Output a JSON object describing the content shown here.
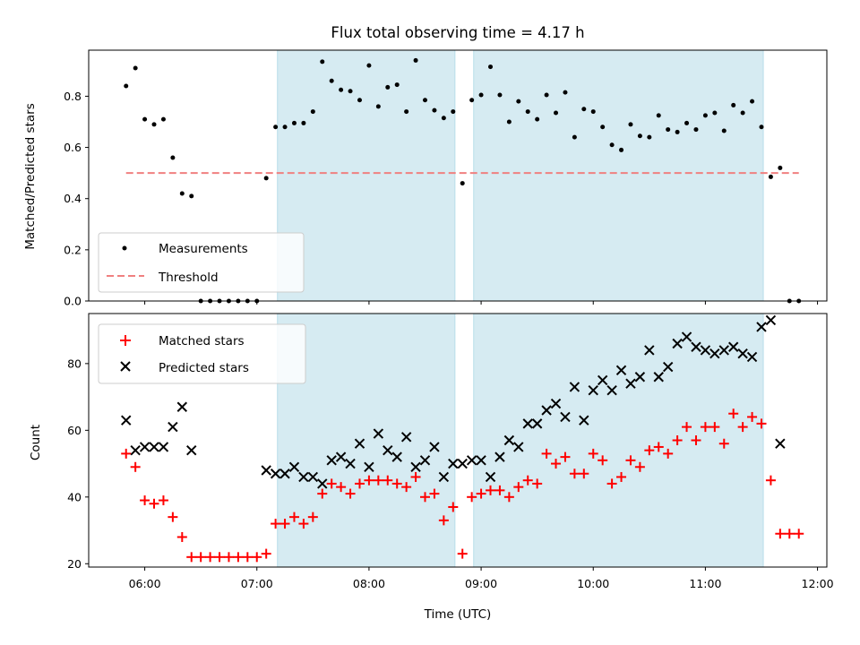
{
  "chart_data": [
    {
      "type": "scatter",
      "panel": "top",
      "title": "Flux total observing time = 4.17 h",
      "xlabel": "",
      "ylabel": "Matched/Predicted stars",
      "xlim": [
        "05:30",
        "12:05"
      ],
      "ylim": [
        0,
        0.98
      ],
      "x_ticks": [
        "06:00",
        "07:00",
        "08:00",
        "09:00",
        "10:00",
        "11:00",
        "12:00"
      ],
      "y_ticks": [
        "0.0",
        "0.2",
        "0.4",
        "0.6",
        "0.8"
      ],
      "y_tick_values": [
        0,
        0.2,
        0.4,
        0.6,
        0.8
      ],
      "shaded_intervals": [
        [
          "07:11",
          "08:46"
        ],
        [
          "08:56",
          "11:31"
        ]
      ],
      "threshold": {
        "name": "Threshold",
        "value": 0.5,
        "x_range": [
          "05:50",
          "11:50"
        ],
        "color": "#f08080"
      },
      "legend_position": "lower-left",
      "series": [
        {
          "name": "Measurements",
          "color": "#000000",
          "x": [
            "05:50",
            "05:55",
            "06:00",
            "06:05",
            "06:10",
            "06:15",
            "06:20",
            "06:25",
            "06:30",
            "06:35",
            "06:40",
            "06:45",
            "06:50",
            "06:55",
            "07:00",
            "07:05",
            "07:10",
            "07:15",
            "07:20",
            "07:25",
            "07:30",
            "07:35",
            "07:40",
            "07:45",
            "07:50",
            "07:55",
            "08:00",
            "08:05",
            "08:10",
            "08:15",
            "08:20",
            "08:25",
            "08:30",
            "08:35",
            "08:40",
            "08:45",
            "08:50",
            "08:55",
            "09:00",
            "09:05",
            "09:10",
            "09:15",
            "09:20",
            "09:25",
            "09:30",
            "09:35",
            "09:40",
            "09:45",
            "09:50",
            "09:55",
            "10:00",
            "10:05",
            "10:10",
            "10:15",
            "10:20",
            "10:25",
            "10:30",
            "10:35",
            "10:40",
            "10:45",
            "10:50",
            "10:55",
            "11:00",
            "11:05",
            "11:10",
            "11:15",
            "11:20",
            "11:25",
            "11:30",
            "11:35",
            "11:40",
            "11:45",
            "11:50"
          ],
          "y": [
            0.84,
            0.91,
            0.71,
            0.69,
            0.71,
            0.56,
            0.42,
            0.41,
            0.0,
            0.0,
            0.0,
            0.0,
            0.0,
            0.0,
            0.0,
            0.48,
            0.68,
            0.68,
            0.695,
            0.695,
            0.74,
            0.935,
            0.86,
            0.825,
            0.82,
            0.785,
            0.92,
            0.76,
            0.835,
            0.845,
            0.74,
            0.94,
            0.785,
            0.745,
            0.715,
            0.74,
            0.46,
            0.785,
            0.805,
            0.915,
            0.805,
            0.7,
            0.78,
            0.74,
            0.71,
            0.805,
            0.735,
            0.815,
            0.64,
            0.75,
            0.74,
            0.68,
            0.61,
            0.59,
            0.69,
            0.645,
            0.64,
            0.725,
            0.67,
            0.66,
            0.695,
            0.67,
            0.725,
            0.735,
            0.665,
            0.765,
            0.735,
            0.78,
            0.68,
            0.485,
            0.52,
            0.0,
            0.0
          ]
        }
      ]
    },
    {
      "type": "scatter",
      "panel": "bottom",
      "title": "",
      "xlabel": "Time (UTC)",
      "ylabel": "Count",
      "xlim": [
        "05:30",
        "12:05"
      ],
      "ylim": [
        19,
        95
      ],
      "x_ticks": [
        "06:00",
        "07:00",
        "08:00",
        "09:00",
        "10:00",
        "11:00",
        "12:00"
      ],
      "y_ticks": [
        "20",
        "40",
        "60",
        "80"
      ],
      "y_tick_values": [
        20,
        40,
        60,
        80
      ],
      "shaded_intervals": [
        [
          "07:11",
          "08:46"
        ],
        [
          "08:56",
          "11:31"
        ]
      ],
      "legend_position": "upper-left",
      "series": [
        {
          "name": "Matched stars",
          "marker": "plus",
          "color": "#ff0000",
          "x": [
            "05:50",
            "05:55",
            "06:00",
            "06:05",
            "06:10",
            "06:15",
            "06:20",
            "06:25",
            "06:30",
            "06:35",
            "06:40",
            "06:45",
            "06:50",
            "06:55",
            "07:00",
            "07:05",
            "07:10",
            "07:15",
            "07:20",
            "07:25",
            "07:30",
            "07:35",
            "07:40",
            "07:45",
            "07:50",
            "07:55",
            "08:00",
            "08:05",
            "08:10",
            "08:15",
            "08:20",
            "08:25",
            "08:30",
            "08:35",
            "08:40",
            "08:45",
            "08:50",
            "08:55",
            "09:00",
            "09:05",
            "09:10",
            "09:15",
            "09:20",
            "09:25",
            "09:30",
            "09:35",
            "09:40",
            "09:45",
            "09:50",
            "09:55",
            "10:00",
            "10:05",
            "10:10",
            "10:15",
            "10:20",
            "10:25",
            "10:30",
            "10:35",
            "10:40",
            "10:45",
            "10:50",
            "10:55",
            "11:00",
            "11:05",
            "11:10",
            "11:15",
            "11:20",
            "11:25",
            "11:30",
            "11:35",
            "11:40",
            "11:45",
            "11:50"
          ],
          "y": [
            53,
            49,
            39,
            38,
            39,
            34,
            28,
            22,
            22,
            22,
            22,
            22,
            22,
            22,
            22,
            23,
            32,
            32,
            34,
            32,
            34,
            41,
            44,
            43,
            41,
            44,
            45,
            45,
            45,
            44,
            43,
            46,
            40,
            41,
            33,
            37,
            23,
            40,
            41,
            42,
            42,
            40,
            43,
            45,
            44,
            53,
            50,
            52,
            47,
            47,
            53,
            51,
            44,
            46,
            51,
            49,
            54,
            55,
            53,
            57,
            61,
            57,
            61,
            61,
            56,
            65,
            61,
            64,
            62,
            45,
            29,
            29,
            29
          ]
        },
        {
          "name": "Predicted stars",
          "marker": "x",
          "color": "#000000",
          "x": [
            "05:50",
            "05:55",
            "06:00",
            "06:05",
            "06:10",
            "06:15",
            "06:20",
            "06:25",
            "07:05",
            "07:10",
            "07:15",
            "07:20",
            "07:25",
            "07:30",
            "07:35",
            "07:40",
            "07:45",
            "07:50",
            "07:55",
            "08:00",
            "08:05",
            "08:10",
            "08:15",
            "08:20",
            "08:25",
            "08:30",
            "08:35",
            "08:40",
            "08:45",
            "08:50",
            "08:55",
            "09:00",
            "09:05",
            "09:10",
            "09:15",
            "09:20",
            "09:25",
            "09:30",
            "09:35",
            "09:40",
            "09:45",
            "09:50",
            "09:55",
            "10:00",
            "10:05",
            "10:10",
            "10:15",
            "10:20",
            "10:25",
            "10:30",
            "10:35",
            "10:40",
            "10:45",
            "10:50",
            "10:55",
            "11:00",
            "11:05",
            "11:10",
            "11:15",
            "11:20",
            "11:25",
            "11:30",
            "11:35",
            "11:40"
          ],
          "y": [
            63,
            54,
            55,
            55,
            55,
            61,
            67,
            54,
            48,
            47,
            47,
            49,
            46,
            46,
            44,
            51,
            52,
            50,
            56,
            49,
            59,
            54,
            52,
            58,
            49,
            51,
            55,
            46,
            50,
            50,
            51,
            51,
            46,
            52,
            57,
            55,
            62,
            62,
            66,
            68,
            64,
            73,
            63,
            72,
            75,
            72,
            78,
            74,
            76,
            84,
            76,
            79,
            86,
            88,
            85,
            84,
            83,
            84,
            85,
            83,
            82,
            91,
            93,
            56
          ]
        }
      ]
    }
  ]
}
